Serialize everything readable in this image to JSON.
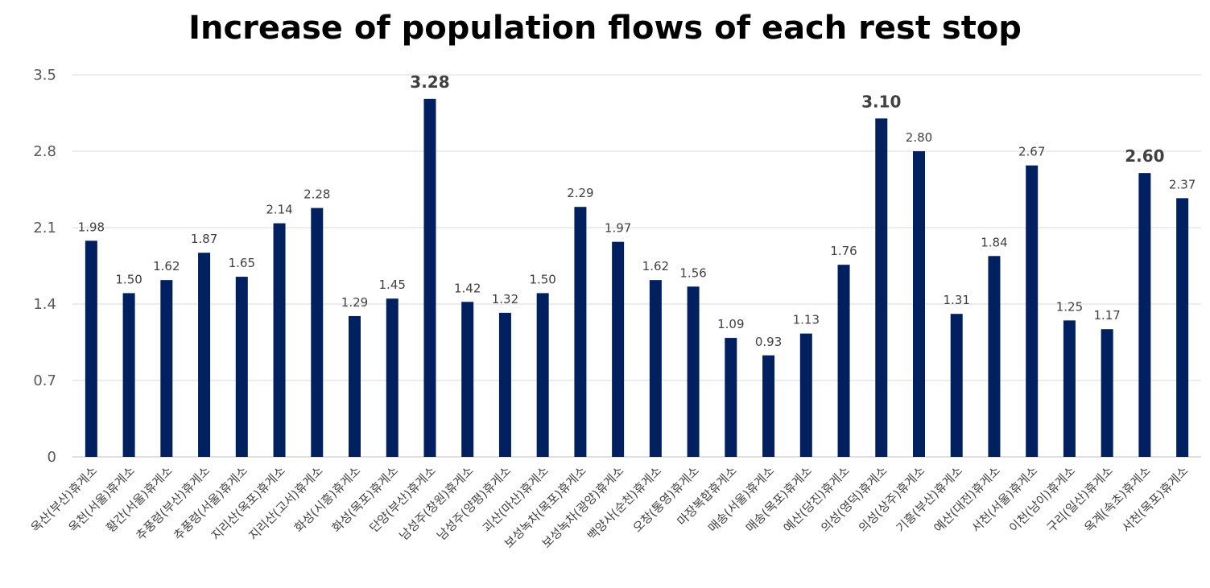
{
  "chart_data": {
    "type": "bar",
    "title": "Increase of population flows of each rest stop",
    "xlabel": "",
    "ylabel": "",
    "ylim": [
      0,
      3.5
    ],
    "yticks": [
      "0",
      "0.7",
      "1.4",
      "2.1",
      "2.8",
      "3.5"
    ],
    "grid": true,
    "categories": [
      "옥산(부산)휴게소",
      "옥천(서울)휴게소",
      "황간(서울)휴게소",
      "추풍령(부산)휴게소",
      "추풍령(서울)휴게소",
      "지리산(옥포)휴게소",
      "지리산(고서)휴게소",
      "화성(시흥)휴게소",
      "화성(목포)휴게소",
      "단양(부산)휴게소",
      "남성주(창원)휴게소",
      "남성주(양평)휴게소",
      "괴산(마산)휴게소",
      "보성녹차(목포)휴게소",
      "보성녹차(광양)휴게소",
      "백양사(순천)휴게소",
      "오창(통영)휴게소",
      "마장복합휴게소",
      "매송(서울)휴게소",
      "매송(목포)휴게소",
      "예산(당진)휴게소",
      "의성(영덕)휴게소",
      "의성(상주)휴게소",
      "기흥(부산)휴게소",
      "예산(대전)휴게소",
      "서천(서울)휴게소",
      "이천(남이)휴게소",
      "구리(일산)휴게소",
      "옥계(속초)휴게소",
      "서천(목포)휴게소"
    ],
    "values": [
      1.98,
      1.5,
      1.62,
      1.87,
      1.65,
      2.14,
      2.28,
      1.29,
      1.45,
      3.28,
      1.42,
      1.32,
      1.5,
      2.29,
      1.97,
      1.62,
      1.56,
      1.09,
      0.93,
      1.13,
      1.76,
      3.1,
      2.8,
      1.31,
      1.84,
      2.67,
      1.25,
      1.17,
      2.6,
      2.37
    ],
    "data_labels": [
      "1.98",
      "1.50",
      "1.62",
      "1.87",
      "1.65",
      "2.14",
      "2.28",
      "1.29",
      "1.45",
      "3.28",
      "1.42",
      "1.32",
      "1.50",
      "2.29",
      "1.97",
      "1.62",
      "1.56",
      "1.09",
      "0.93",
      "1.13",
      "1.76",
      "3.10",
      "2.80",
      "1.31",
      "1.84",
      "2.67",
      "1.25",
      "1.17",
      "2.60",
      "2.37"
    ],
    "highlighted_indices": [
      9,
      21,
      28
    ],
    "colors": {
      "bar": "#002060",
      "highlight_label": "#C00000",
      "label": "#404040",
      "grid": "#D9D9D9",
      "axis": "#BFBFBF"
    }
  }
}
